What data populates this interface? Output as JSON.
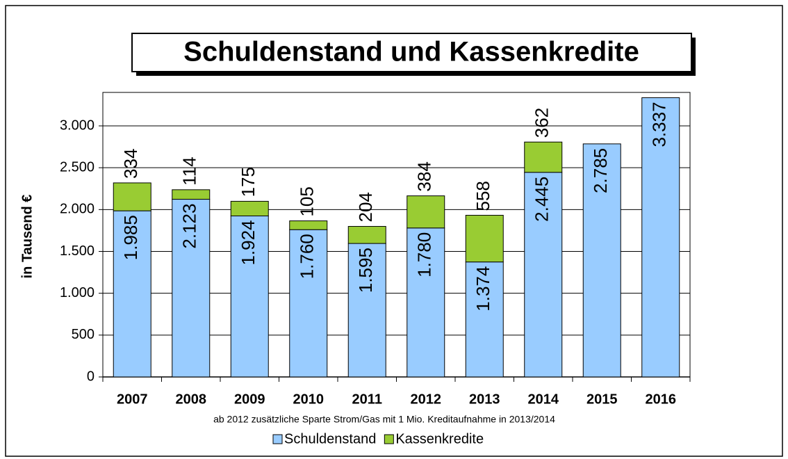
{
  "chart_data": {
    "type": "stacked_bar",
    "title": "Schuldenstand und Kassenkredite",
    "y_label": "in Tausend €",
    "annotation": "ab 2012 zusätzliche Sparte Strom/Gas mit  1 Mio. Kreditaufnahme in 2013/2014",
    "categories": [
      "2007",
      "2008",
      "2009",
      "2010",
      "2011",
      "2012",
      "2013",
      "2014",
      "2015",
      "2016"
    ],
    "series": [
      {
        "name": "Schuldenstand",
        "color": "#99ccff",
        "values": [
          1985,
          2123,
          1924,
          1760,
          1595,
          1780,
          1374,
          2445,
          2785,
          3337
        ],
        "value_labels": [
          "1.985",
          "2.123",
          "1.924",
          "1.760",
          "1.595",
          "1.780",
          "1.374",
          "2.445",
          "2.785",
          "3.337"
        ]
      },
      {
        "name": "Kassenkredite",
        "color": "#99cc33",
        "values": [
          334,
          114,
          175,
          105,
          204,
          384,
          558,
          362,
          null,
          null
        ]
      }
    ],
    "ylim": [
      0,
      3400
    ],
    "yticks": [
      0,
      500,
      {
        "value": 1000,
        "label": "1.000"
      },
      {
        "value": 1500,
        "label": "1.500"
      },
      {
        "value": 2000,
        "label": "2.000"
      },
      {
        "value": 2500,
        "label": "2.500"
      },
      {
        "value": 3000,
        "label": "3.000"
      }
    ],
    "grid": true,
    "legend": "bottom"
  }
}
